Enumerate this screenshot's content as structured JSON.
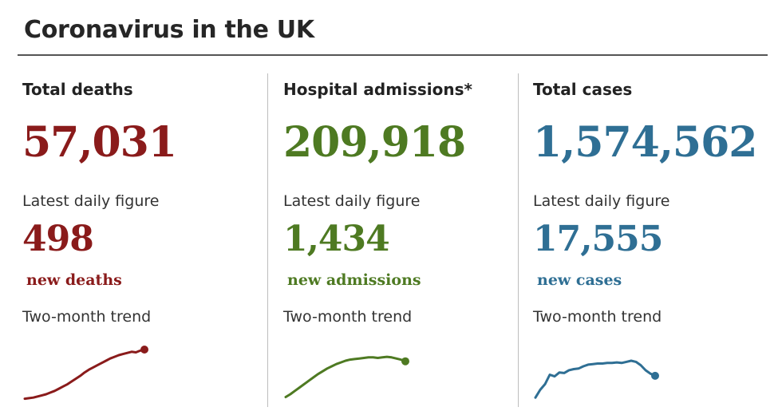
{
  "title": "Coronavirus in the UK",
  "daily_label": "Latest daily figure",
  "trend_label": "Two-month trend",
  "panels": [
    {
      "heading": "Total deaths",
      "total": "57,031",
      "daily": "498",
      "daily_unit": "new deaths",
      "color": "#8a1b1b"
    },
    {
      "heading": "Hospital admissions*",
      "total": "209,918",
      "daily": "1,434",
      "daily_unit": "new admissions",
      "color": "#4e7a22"
    },
    {
      "heading": "Total cases",
      "total": "1,574,562",
      "daily": "17,555",
      "daily_unit": "new cases",
      "color": "#2f6f94"
    }
  ],
  "chart_data": [
    {
      "type": "line",
      "title": "Total deaths — Two-month trend",
      "series": [
        {
          "name": "Total deaths",
          "values": [
            2,
            3,
            4,
            6,
            8,
            10,
            13,
            16,
            20,
            24,
            28,
            33,
            38,
            43,
            49,
            54,
            58,
            62,
            66,
            70,
            74,
            77,
            80,
            82,
            84,
            86,
            85,
            88,
            90
          ]
        }
      ],
      "grid": false,
      "legend": "none"
    },
    {
      "type": "line",
      "title": "Hospital admissions — Two-month trend",
      "series": [
        {
          "name": "Hospital admissions",
          "values": [
            5,
            10,
            16,
            22,
            28,
            34,
            40,
            46,
            51,
            56,
            60,
            64,
            67,
            70,
            72,
            73,
            74,
            75,
            76,
            76,
            75,
            76,
            77,
            76,
            74,
            72,
            69
          ]
        }
      ],
      "grid": false,
      "legend": "none"
    },
    {
      "type": "line",
      "title": "Total cases — Two-month trend",
      "series": [
        {
          "name": "Total cases",
          "values": [
            4,
            18,
            28,
            45,
            42,
            49,
            48,
            53,
            55,
            56,
            60,
            63,
            64,
            65,
            65,
            66,
            66,
            67,
            66,
            68,
            70,
            68,
            62,
            53,
            47,
            43
          ]
        }
      ],
      "grid": false,
      "legend": "none"
    }
  ]
}
